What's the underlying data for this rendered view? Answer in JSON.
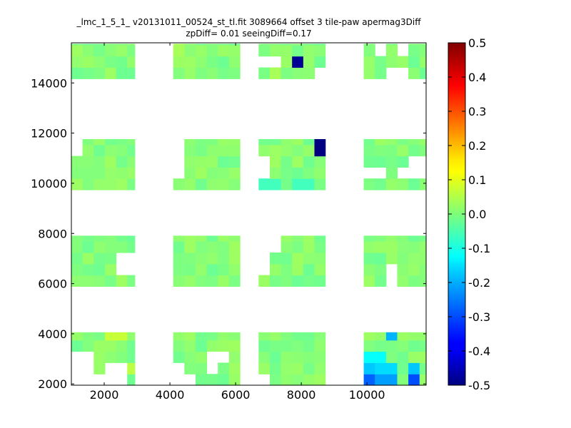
{
  "title_line1": "_lmc_1_5_1_ v20131011_00524_st_tl.fit 3089664 offset 3 tile-paw apermag3Diff",
  "title_line2": "zpDiff= 0.01 seeingDiff=0.17",
  "chart_data": {
    "type": "heatmap",
    "title": "_lmc_1_5_1_ v20131011_00524_st_tl.fit 3089664 offset 3 tile-paw apermag3Diff",
    "subtitle": "zpDiff= 0.01 seeingDiff=0.17",
    "xlim": [
      1000,
      11800
    ],
    "ylim": [
      1950,
      15600
    ],
    "x_ticks": [
      2000,
      4000,
      6000,
      8000,
      10000
    ],
    "y_ticks": [
      2000,
      4000,
      6000,
      8000,
      10000,
      12000,
      14000
    ],
    "colorbar": {
      "min": -0.5,
      "max": 0.5,
      "ticks": [
        -0.5,
        -0.4,
        -0.3,
        -0.2,
        -0.1,
        0.0,
        0.1,
        0.2,
        0.3,
        0.4,
        0.5
      ],
      "colormap": "jet"
    },
    "cell_size": [
      340,
      450
    ],
    "default_value": 0.0,
    "detectors": [
      {
        "x": [
          1000,
          2700,
          2930
        ],
        "y": [
          14170,
          15160,
          15560
        ]
      },
      {
        "x": [
          4100,
          5800,
          6130
        ],
        "y": [
          14170,
          15160,
          15560
        ]
      },
      {
        "x": [
          6700,
          8400,
          8730
        ],
        "y": [
          14170,
          15160,
          15560
        ]
      },
      {
        "x": [
          9900,
          11450,
          11800
        ],
        "y": [
          14170,
          15160,
          15560
        ]
      },
      {
        "x": [
          1000,
          2700,
          2930
        ],
        "y": [
          9740,
          11130,
          11760
        ]
      },
      {
        "x": [
          4100,
          5800,
          6130
        ],
        "y": [
          9740,
          11130,
          11760
        ]
      },
      {
        "x": [
          6700,
          8400,
          8730
        ],
        "y": [
          9740,
          11130,
          11760
        ]
      },
      {
        "x": [
          9900,
          11450,
          11800
        ],
        "y": [
          9740,
          11130,
          11760
        ]
      },
      {
        "x": [
          1000,
          2700,
          2930
        ],
        "y": [
          5890,
          7280,
          7910
        ]
      },
      {
        "x": [
          4100,
          5800,
          6130
        ],
        "y": [
          5890,
          7280,
          7910
        ]
      },
      {
        "x": [
          6700,
          8400,
          8730
        ],
        "y": [
          5890,
          7280,
          7910
        ]
      },
      {
        "x": [
          9900,
          11450,
          11800
        ],
        "y": [
          5890,
          7280,
          7910
        ]
      },
      {
        "x": [
          1000,
          2700,
          2930
        ],
        "y": [
          1950,
          3440,
          4060
        ]
      },
      {
        "x": [
          4100,
          5800,
          6130
        ],
        "y": [
          1950,
          3440,
          4060
        ]
      },
      {
        "x": [
          6700,
          8400,
          8730
        ],
        "y": [
          1950,
          3440,
          4060
        ]
      },
      {
        "x": [
          9900,
          11450,
          11800
        ],
        "y": [
          1950,
          3440,
          4060
        ]
      }
    ],
    "missing_cells": [
      [
        10300,
        15380
      ],
      [
        11200,
        15380
      ],
      [
        10800,
        14500
      ],
      [
        11200,
        14500
      ],
      [
        10800,
        14180
      ],
      [
        6800,
        14990
      ],
      [
        7200,
        14990
      ],
      [
        8580,
        14520
      ],
      [
        1000,
        11500
      ],
      [
        4100,
        11500
      ],
      [
        4100,
        10600
      ],
      [
        4100,
        10280
      ],
      [
        6700,
        10600
      ],
      [
        6700,
        10280
      ],
      [
        10030,
        10300
      ],
      [
        10300,
        10300
      ],
      [
        11250,
        10300
      ],
      [
        11600,
        10300
      ],
      [
        11600,
        10600
      ],
      [
        2720,
        7000
      ],
      [
        2720,
        6660
      ],
      [
        6700,
        7380
      ],
      [
        6700,
        7000
      ],
      [
        6700,
        6660
      ],
      [
        7040,
        7380
      ],
      [
        7040,
        7700
      ],
      [
        10800,
        6340
      ],
      [
        10820,
        6000
      ],
      [
        1340,
        3080
      ],
      [
        1340,
        2620
      ],
      [
        1340,
        2260
      ],
      [
        1640,
        2260
      ],
      [
        1990,
        2260
      ],
      [
        2350,
        2620
      ],
      [
        2350,
        2260
      ],
      [
        4100,
        2620
      ],
      [
        4100,
        2260
      ],
      [
        4440,
        2260
      ],
      [
        5200,
        3080
      ],
      [
        5200,
        2620
      ],
      [
        5600,
        3080
      ],
      [
        6700,
        2260
      ]
    ],
    "values": [
      {
        "x": 7940,
        "y": 14890,
        "v": -0.48
      },
      {
        "x": 8520,
        "y": 11530,
        "v": -0.5
      },
      {
        "x": 9900,
        "y": 14020,
        "v": 0.09
      },
      {
        "x": 3040,
        "y": 3950,
        "v": 0.12
      },
      {
        "x": 2350,
        "y": 3950,
        "v": 0.07
      },
      {
        "x": 10850,
        "y": 3950,
        "v": -0.2
      },
      {
        "x": 9920,
        "y": 3060,
        "v": -0.12
      },
      {
        "x": 10260,
        "y": 3060,
        "v": -0.12
      },
      {
        "x": 9920,
        "y": 2610,
        "v": -0.18
      },
      {
        "x": 10260,
        "y": 2610,
        "v": -0.16
      },
      {
        "x": 10600,
        "y": 2610,
        "v": -0.16
      },
      {
        "x": 11450,
        "y": 2610,
        "v": -0.18
      },
      {
        "x": 9920,
        "y": 2160,
        "v": -0.28
      },
      {
        "x": 10600,
        "y": 2160,
        "v": -0.22
      },
      {
        "x": 11450,
        "y": 2160,
        "v": -0.3
      },
      {
        "x": 1100,
        "y": 2900,
        "v": 0.05
      },
      {
        "x": 1100,
        "y": 2450,
        "v": 0.05
      },
      {
        "x": 2700,
        "y": 2450,
        "v": 0.06
      },
      {
        "x": 8060,
        "y": 10020,
        "v": -0.06
      },
      {
        "x": 7060,
        "y": 10020,
        "v": -0.06
      },
      {
        "x": 11100,
        "y": 14020,
        "v": 0.05
      },
      {
        "x": 1000,
        "y": 14020,
        "v": 0.04
      },
      {
        "x": 4200,
        "y": 15450,
        "v": 0.04
      },
      {
        "x": 7200,
        "y": 14150,
        "v": 0.04
      }
    ]
  }
}
